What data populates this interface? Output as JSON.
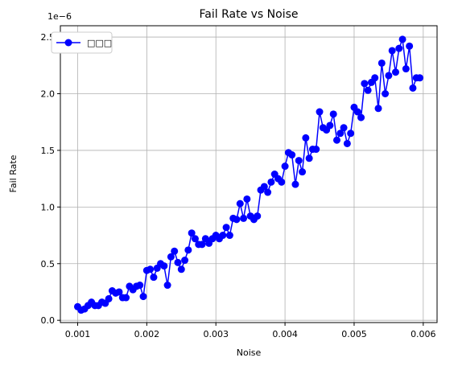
{
  "chart_data": {
    "type": "line",
    "title": "Fail Rate vs Noise",
    "xlabel": "Noise",
    "ylabel": "Fail Rate",
    "y_multiplier": "1e−6",
    "xlim": [
      0.00075,
      0.0062
    ],
    "ylim": [
      -0.02,
      2.6
    ],
    "xticks": [
      0.001,
      0.002,
      0.003,
      0.004,
      0.005,
      0.006
    ],
    "xtick_labels": [
      "0.001",
      "0.002",
      "0.003",
      "0.004",
      "0.005",
      "0.006"
    ],
    "yticks": [
      0.0,
      0.5,
      1.0,
      1.5,
      2.0,
      2.5
    ],
    "ytick_labels": [
      "0.0",
      "0.5",
      "1.0",
      "1.5",
      "2.0",
      "2.5"
    ],
    "grid": true,
    "legend_position": "top-left",
    "series": [
      {
        "name": "□□□",
        "color": "#0000ff",
        "marker": "circle",
        "x": [
          0.001,
          0.00105,
          0.0011,
          0.00115,
          0.0012,
          0.00125,
          0.0013,
          0.00135,
          0.0014,
          0.00145,
          0.0015,
          0.00155,
          0.0016,
          0.00165,
          0.0017,
          0.00175,
          0.0018,
          0.00185,
          0.0019,
          0.00195,
          0.002,
          0.00205,
          0.0021,
          0.00215,
          0.0022,
          0.00225,
          0.0023,
          0.00235,
          0.0024,
          0.00245,
          0.0025,
          0.00255,
          0.0026,
          0.00265,
          0.0027,
          0.00275,
          0.0028,
          0.00285,
          0.0029,
          0.00295,
          0.003,
          0.00305,
          0.0031,
          0.00315,
          0.0032,
          0.00325,
          0.0033,
          0.00335,
          0.0034,
          0.00345,
          0.0035,
          0.00355,
          0.0036,
          0.00365,
          0.0037,
          0.00375,
          0.0038,
          0.00385,
          0.0039,
          0.00395,
          0.004,
          0.00405,
          0.0041,
          0.00415,
          0.0042,
          0.00425,
          0.0043,
          0.00435,
          0.0044,
          0.00445,
          0.0045,
          0.00455,
          0.0046,
          0.00465,
          0.0047,
          0.00475,
          0.0048,
          0.00485,
          0.0049,
          0.00495,
          0.005,
          0.00505,
          0.0051,
          0.00515,
          0.0052,
          0.00525,
          0.0053,
          0.00535,
          0.0054,
          0.00545,
          0.0055,
          0.00555,
          0.0056,
          0.00565,
          0.0057,
          0.00575,
          0.0058,
          0.00585,
          0.0059,
          0.00595
        ],
        "y": [
          0.12,
          0.09,
          0.1,
          0.13,
          0.16,
          0.13,
          0.13,
          0.16,
          0.15,
          0.19,
          0.26,
          0.24,
          0.25,
          0.2,
          0.2,
          0.3,
          0.27,
          0.3,
          0.31,
          0.21,
          0.44,
          0.45,
          0.38,
          0.46,
          0.5,
          0.48,
          0.31,
          0.56,
          0.61,
          0.51,
          0.45,
          0.53,
          0.62,
          0.77,
          0.72,
          0.67,
          0.67,
          0.72,
          0.68,
          0.72,
          0.75,
          0.72,
          0.75,
          0.82,
          0.75,
          0.9,
          0.89,
          1.03,
          0.9,
          1.07,
          0.92,
          0.89,
          0.92,
          1.15,
          1.18,
          1.13,
          1.22,
          1.29,
          1.25,
          1.22,
          1.36,
          1.48,
          1.46,
          1.2,
          1.41,
          1.31,
          1.61,
          1.43,
          1.51,
          1.51,
          1.84,
          1.7,
          1.68,
          1.72,
          1.82,
          1.59,
          1.65,
          1.7,
          1.56,
          1.65,
          1.88,
          1.84,
          1.79,
          2.09,
          2.03,
          2.1,
          2.14,
          1.87,
          2.27,
          2.0,
          2.16,
          2.38,
          2.19,
          2.4,
          2.48,
          2.22,
          2.42,
          2.05,
          2.14,
          2.14
        ]
      }
    ]
  }
}
